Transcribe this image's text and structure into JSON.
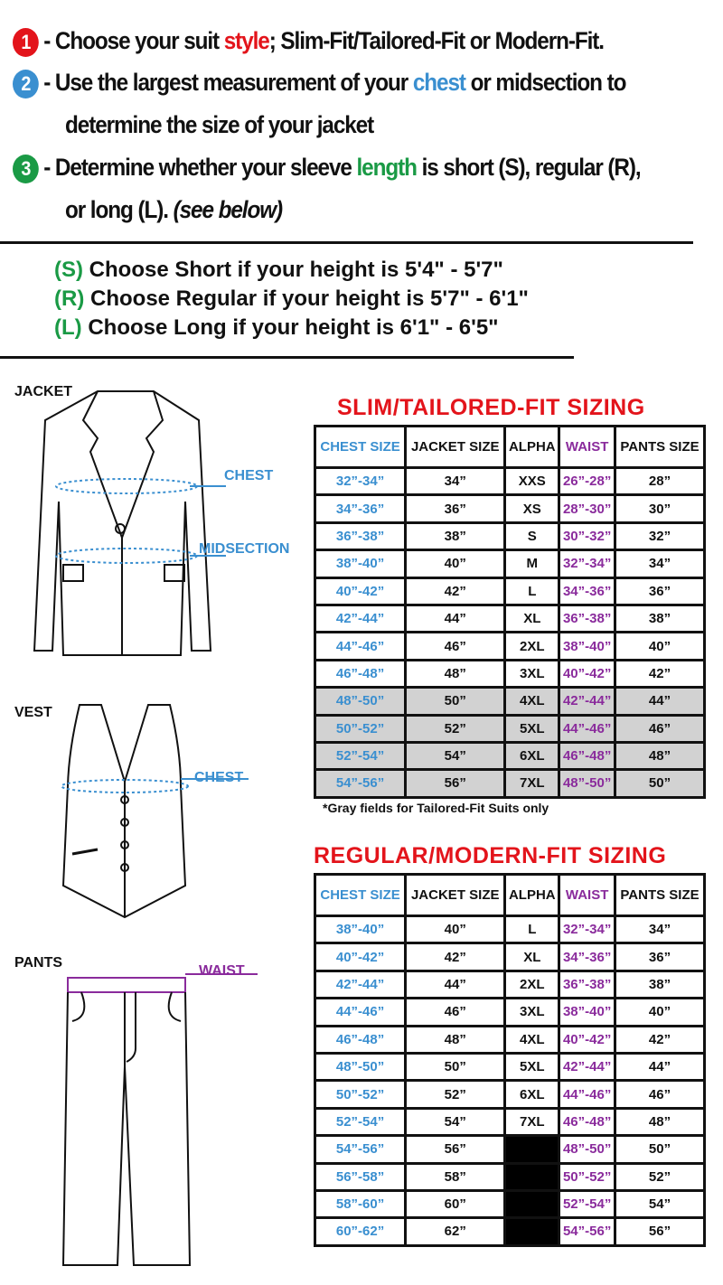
{
  "instructions": [
    {
      "num": "1",
      "color": "#e3141b",
      "pre": "- Choose your suit ",
      "hl": "style",
      "post": "; Slim-Fit/Tailored-Fit or Modern-Fit."
    },
    {
      "num": "2",
      "color": "#3a8fd0",
      "pre": "- Use the largest measurement of your ",
      "hl": "chest",
      "post": " or midsection to",
      "cont": "determine the size of your jacket"
    },
    {
      "num": "3",
      "color": "#1a9a45",
      "pre": "- Determine whether your sleeve ",
      "hl": "length",
      "post": " is short (S), regular (R),",
      "cont": "or long (L).",
      "cont_italic": "(see below)"
    }
  ],
  "heights": [
    {
      "code": "(S)",
      "text": "Choose Short if your height is 5'4\" - 5'7\""
    },
    {
      "code": "(R)",
      "text": "Choose Regular if your height is  5'7\" - 6'1\""
    },
    {
      "code": "(L)",
      "text": "Choose Long if your height is  6'1\" - 6'5\""
    }
  ],
  "garments": {
    "jacket": "JACKET",
    "vest": "VEST",
    "pants": "PANTS",
    "chest": "CHEST",
    "midsection": "MIDSECTION",
    "waist": "WAIST"
  },
  "headers": [
    "CHEST SIZE",
    "JACKET SIZE",
    "ALPHA",
    "WAIST",
    "PANTS SIZE"
  ],
  "slim": {
    "title": "SLIM/TAILORED-FIT SIZING",
    "note": "*Gray fields for Tailored-Fit Suits only",
    "rows": [
      [
        "32”-34”",
        "34”",
        "XXS",
        "26”-28”",
        "28”",
        false
      ],
      [
        "34”-36”",
        "36”",
        "XS",
        "28”-30”",
        "30”",
        false
      ],
      [
        "36”-38”",
        "38”",
        "S",
        "30”-32”",
        "32”",
        false
      ],
      [
        "38”-40”",
        "40”",
        "M",
        "32”-34”",
        "34”",
        false
      ],
      [
        "40”-42”",
        "42”",
        "L",
        "34”-36”",
        "36”",
        false
      ],
      [
        "42”-44”",
        "44”",
        "XL",
        "36”-38”",
        "38”",
        false
      ],
      [
        "44”-46”",
        "46”",
        "2XL",
        "38”-40”",
        "40”",
        false
      ],
      [
        "46”-48”",
        "48”",
        "3XL",
        "40”-42”",
        "42”",
        false
      ],
      [
        "48”-50”",
        "50”",
        "4XL",
        "42”-44”",
        "44”",
        true
      ],
      [
        "50”-52”",
        "52”",
        "5XL",
        "44”-46”",
        "46”",
        true
      ],
      [
        "52”-54”",
        "54”",
        "6XL",
        "46”-48”",
        "48”",
        true
      ],
      [
        "54”-56”",
        "56”",
        "7XL",
        "48”-50”",
        "50”",
        true
      ]
    ]
  },
  "regular": {
    "title": "REGULAR/MODERN-FIT SIZING",
    "rows": [
      [
        "38”-40”",
        "40”",
        "L",
        "32”-34”",
        "34”"
      ],
      [
        "40”-42”",
        "42”",
        "XL",
        "34”-36”",
        "36”"
      ],
      [
        "42”-44”",
        "44”",
        "2XL",
        "36”-38”",
        "38”"
      ],
      [
        "44”-46”",
        "46”",
        "3XL",
        "38”-40”",
        "40”"
      ],
      [
        "46”-48”",
        "48”",
        "4XL",
        "40”-42”",
        "42”"
      ],
      [
        "48”-50”",
        "50”",
        "5XL",
        "42”-44”",
        "44”"
      ],
      [
        "50”-52”",
        "52”",
        "6XL",
        "44”-46”",
        "46”"
      ],
      [
        "52”-54”",
        "54”",
        "7XL",
        "46”-48”",
        "48”"
      ],
      [
        "54”-56”",
        "56”",
        null,
        "48”-50”",
        "50”"
      ],
      [
        "56”-58”",
        "58”",
        null,
        "50”-52”",
        "52”"
      ],
      [
        "58”-60”",
        "60”",
        null,
        "52”-54”",
        "54”"
      ],
      [
        "60”-62”",
        "62”",
        null,
        "54”-56”",
        "56”"
      ]
    ]
  }
}
